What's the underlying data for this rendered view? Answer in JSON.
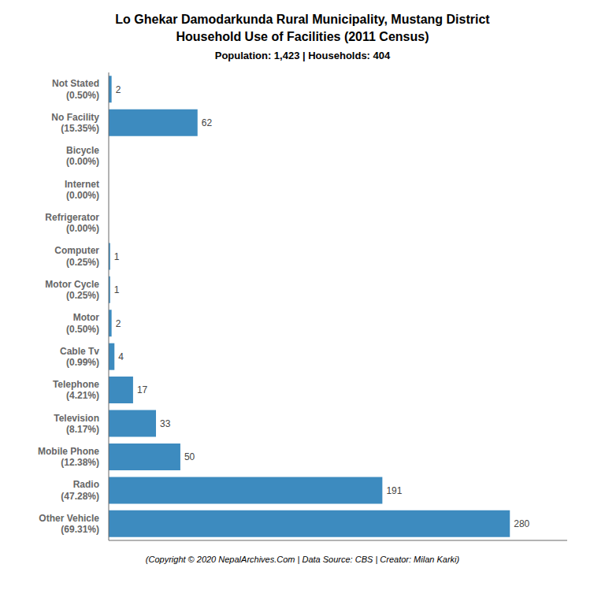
{
  "chart_data": {
    "type": "bar",
    "title": "Lo Ghekar Damodarkunda Rural Municipality, Mustang District\nHousehold Use of Facilities (2011 Census)",
    "subtitle": "Population: 1,423 | Households: 404",
    "annotations": [
      "(Copyright © 2020 NepalArchives.Com | Data Source: CBS | Creator: Milan Karki)"
    ],
    "categories": [
      "Not Stated\n(0.50%)",
      "No Facility\n(15.35%)",
      "Bicycle\n(0.00%)",
      "Internet\n(0.00%)",
      "Refrigerator\n(0.00%)",
      "Computer\n(0.25%)",
      "Motor Cycle\n(0.25%)",
      "Motor\n(0.50%)",
      "Cable Tv\n(0.99%)",
      "Telephone\n(4.21%)",
      "Television\n(8.17%)",
      "Mobile Phone\n(12.38%)",
      "Radio\n(47.28%)",
      "Other Vehicle\n(69.31%)"
    ],
    "values": [
      2,
      62,
      0,
      0,
      0,
      1,
      1,
      2,
      4,
      17,
      33,
      50,
      191,
      280
    ],
    "color": "#3d8bbf",
    "orientation": "horizontal",
    "xlim": [
      0,
      320
    ],
    "data_labels": true,
    "tick_labels": "y",
    "grid": false
  }
}
